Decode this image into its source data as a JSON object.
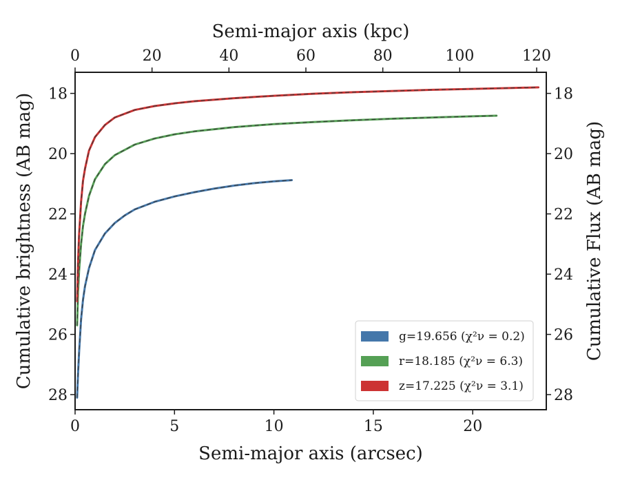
{
  "chart_data": {
    "type": "line",
    "xlabel": "Semi-major axis (arcsec)",
    "xlabel_top": "Semi-major axis (kpc)",
    "ylabel": "Cumulative brightness (AB mag)",
    "ylabel_right": "Cumulative Flux (AB mag)",
    "xlim": [
      0,
      23.7
    ],
    "xlim_top": [
      0,
      122.5
    ],
    "ylim": [
      28.5,
      17.3
    ],
    "y_inverted": true,
    "x_ticks": [
      0,
      5,
      10,
      15,
      20
    ],
    "x_ticks_top": [
      0,
      20,
      40,
      60,
      80,
      100,
      120
    ],
    "y_ticks": [
      18,
      20,
      22,
      24,
      26,
      28
    ],
    "grid": false,
    "legend_position": "lower-right",
    "legend": [
      {
        "label": "g=19.656",
        "chi": "(χ²ν = 0.2)"
      },
      {
        "label": "r=18.185",
        "chi": "(χ²ν = 6.3)"
      },
      {
        "label": "z=17.225",
        "chi": "(χ²ν = 3.1)"
      }
    ],
    "series": [
      {
        "name": "g",
        "color": "#4477aa",
        "x": [
          0.1,
          0.15,
          0.2,
          0.3,
          0.4,
          0.5,
          0.7,
          1.0,
          1.5,
          2.0,
          2.5,
          3.0,
          4.0,
          5.0,
          6.0,
          7.0,
          8.0,
          9.0,
          10.0,
          10.9
        ],
        "y": [
          28.1,
          27.3,
          26.6,
          25.5,
          24.85,
          24.4,
          23.8,
          23.2,
          22.65,
          22.3,
          22.05,
          21.85,
          21.6,
          21.42,
          21.28,
          21.16,
          21.06,
          20.98,
          20.92,
          20.88
        ]
      },
      {
        "name": "r",
        "color": "#55a055",
        "x": [
          0.1,
          0.15,
          0.2,
          0.3,
          0.4,
          0.5,
          0.7,
          1.0,
          1.5,
          2.0,
          3.0,
          4.0,
          5.0,
          6.0,
          8.0,
          10.0,
          12.0,
          14.0,
          16.0,
          18.0,
          20.0,
          21.2
        ],
        "y": [
          25.7,
          24.6,
          23.9,
          23.0,
          22.4,
          22.0,
          21.4,
          20.85,
          20.35,
          20.05,
          19.7,
          19.5,
          19.36,
          19.26,
          19.12,
          19.02,
          18.95,
          18.89,
          18.84,
          18.8,
          18.76,
          18.74
        ]
      },
      {
        "name": "z",
        "color": "#cc3333",
        "x": [
          0.1,
          0.15,
          0.2,
          0.3,
          0.4,
          0.5,
          0.7,
          1.0,
          1.5,
          2.0,
          3.0,
          4.0,
          5.0,
          6.0,
          8.0,
          10.0,
          12.0,
          14.0,
          16.0,
          18.0,
          20.0,
          22.0,
          23.3
        ],
        "y": [
          24.9,
          23.6,
          22.7,
          21.6,
          20.9,
          20.5,
          19.9,
          19.45,
          19.05,
          18.8,
          18.55,
          18.42,
          18.33,
          18.26,
          18.16,
          18.08,
          18.01,
          17.96,
          17.92,
          17.88,
          17.85,
          17.82,
          17.8
        ]
      }
    ]
  }
}
